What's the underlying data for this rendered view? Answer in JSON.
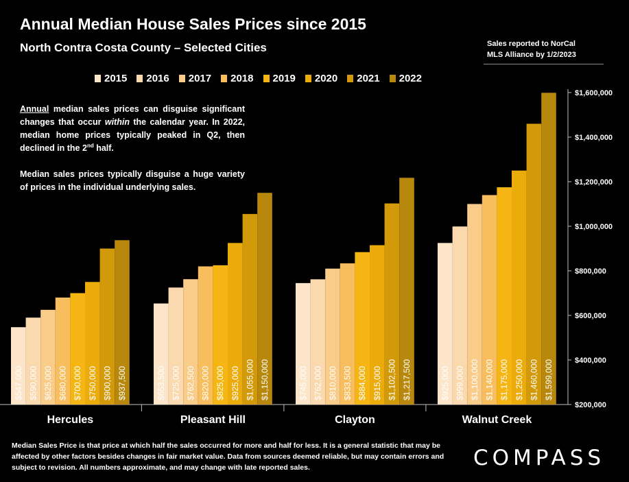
{
  "header": {
    "title": "Annual Median House Sales Prices since 2015",
    "subtitle": "North Contra Costa County – Selected Cities",
    "source_line1": "Sales reported to NorCal",
    "source_line2": "MLS Alliance by 1/2/2023"
  },
  "note": {
    "p1_underlined": "Annual",
    "p1_a": " median sales prices can disguise significant changes that occur ",
    "p1_italic": "within",
    "p1_b": " the calendar year. In 2022, median home prices typically peaked in Q2, then declined in the 2",
    "p1_sup": "nd",
    "p1_c": " half.",
    "p2": "Median sales prices typically disguise a huge variety of prices in the individual underlying sales."
  },
  "footer": {
    "text": "Median Sales Price is that price at which half the sales occurred for more and half for less. It is a general statistic that may be affected by other factors besides changes in fair market value. Data from sources deemed reliable, but may contain errors and subject to revision.  All numbers approximate, and may change with late reported sales."
  },
  "logo": {
    "text": "COMPASS"
  },
  "chart_data": {
    "type": "bar",
    "title": "Annual Median House Sales Prices since 2015",
    "subtitle": "North Contra Costa County – Selected Cities",
    "categories": [
      "Hercules",
      "Pleasant Hill",
      "Clayton",
      "Walnut Creek"
    ],
    "ylim": [
      200000,
      1600000
    ],
    "yticks": [
      {
        "value": 200000,
        "label": "$200,000"
      },
      {
        "value": 400000,
        "label": "$400,000"
      },
      {
        "value": 600000,
        "label": "$600,000"
      },
      {
        "value": 800000,
        "label": "$800,000"
      },
      {
        "value": 1000000,
        "label": "$1,000,000"
      },
      {
        "value": 1200000,
        "label": "$1,200,000"
      },
      {
        "value": 1400000,
        "label": "$1,400,000"
      },
      {
        "value": 1600000,
        "label": "$1,600,000"
      }
    ],
    "y_axis_position": "right",
    "legend_position": "top",
    "grid": false,
    "series": [
      {
        "name": "2015",
        "color": "#FCE5C8",
        "values": [
          547000,
          653500,
          745000,
          925000
        ],
        "labels": [
          "$547,000",
          "$653,500",
          "$745,000",
          "$925,000"
        ]
      },
      {
        "name": "2016",
        "color": "#FBD9AE",
        "values": [
          590000,
          725000,
          762000,
          999000
        ],
        "labels": [
          "$590,000",
          "$725,000",
          "$762,000",
          "$999,000"
        ]
      },
      {
        "name": "2017",
        "color": "#FACC8A",
        "values": [
          625000,
          762500,
          810000,
          1100000
        ],
        "labels": [
          "$625,000",
          "$762,500",
          "$810,000",
          "$1,100,000"
        ]
      },
      {
        "name": "2018",
        "color": "#F8BE5E",
        "values": [
          680000,
          820000,
          833500,
          1140000
        ],
        "labels": [
          "$680,000",
          "$820,000",
          "$833,500",
          "$1,140,000"
        ]
      },
      {
        "name": "2019",
        "color": "#F5B512",
        "values": [
          700000,
          825000,
          884000,
          1175000
        ],
        "labels": [
          "$700,000",
          "$825,000",
          "$884,000",
          "$1,175,000"
        ]
      },
      {
        "name": "2020",
        "color": "#EBAB0B",
        "values": [
          750000,
          925000,
          915000,
          1250000
        ],
        "labels": [
          "$750,000",
          "$925,000",
          "$915,000",
          "$1,250,000"
        ]
      },
      {
        "name": "2021",
        "color": "#D29A0A",
        "values": [
          900000,
          1055000,
          1102500,
          1460000
        ],
        "labels": [
          "$900,000",
          "$1,055,000",
          "$1,102,500",
          "$1,460,000"
        ]
      },
      {
        "name": "2022",
        "color": "#B8880D",
        "values": [
          937500,
          1150000,
          1217500,
          1599000
        ],
        "labels": [
          "$937,500",
          "$1,150,000",
          "$1,217,500",
          "$1,599,000"
        ]
      }
    ]
  }
}
